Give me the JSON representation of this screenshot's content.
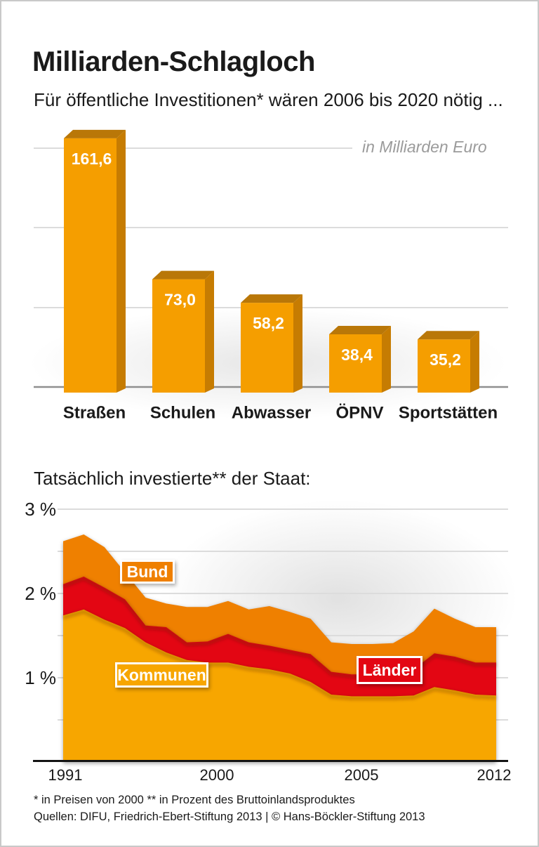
{
  "page": {
    "title": "Milliarden-Schlagloch",
    "subtitle": "Für öffentliche Investitionen* wären 2006 bis 2020 nötig ...",
    "section2_heading": "Tatsächlich investierte** der Staat:",
    "footnote": "* in Preisen von 2000  ** in Prozent des Bruttoinlandsproduktes",
    "source_line": "Quellen: DIFU, Friedrich-Ebert-Stiftung 2013 | © Hans-Böckler-Stiftung 2013"
  },
  "colors": {
    "bar_face": "#F59E00",
    "bar_shade_top": "#B97708",
    "bar_shade_side": "#C67C02",
    "orange_light": "#F7A600",
    "orange_dark": "#EF8000",
    "red": "#E30613",
    "grid": "#DCDCDC",
    "bar_baseline": "#8F8F8F",
    "axis": "#141414",
    "text": "#1A1A1A",
    "muted_gray": "#9B9B9B"
  },
  "chart_data": [
    {
      "type": "bar",
      "title": "Für öffentliche Investitionen* wären 2006 bis 2020 nötig ...",
      "unit_label": "in Milliarden Euro",
      "categories": [
        "Straßen",
        "Schulen",
        "Abwasser",
        "ÖPNV",
        "Sportstätten"
      ],
      "values": [
        161.6,
        73.0,
        58.2,
        38.4,
        35.2
      ],
      "value_labels": [
        "161,6",
        "73,0",
        "58,2",
        "38,4",
        "35,2"
      ],
      "ylim": [
        0,
        176
      ],
      "grid_step": 50,
      "grid_visible": true,
      "style": "3d-extruded-bars"
    },
    {
      "type": "area",
      "stacked": true,
      "title": "Tatsächlich investierte** der Staat:",
      "unit": "Prozent des Bruttoinlandsproduktes",
      "x": [
        1991,
        1992,
        1993,
        1994,
        1995,
        1996,
        1997,
        1998,
        1999,
        2000,
        2001,
        2002,
        2003,
        2004,
        2005,
        2006,
        2007,
        2008,
        2009,
        2010,
        2011,
        2012
      ],
      "xticks": [
        "1991",
        "2000",
        "2005",
        "2012"
      ],
      "yticks": [
        "3 %",
        "2 %",
        "1 %"
      ],
      "ylim": [
        0,
        3.27
      ],
      "grid_interval": 0.5,
      "series": [
        {
          "name": "Kommunen",
          "color": "#F7A600",
          "values": [
            1.74,
            1.81,
            1.69,
            1.59,
            1.42,
            1.3,
            1.21,
            1.18,
            1.18,
            1.13,
            1.1,
            1.05,
            0.95,
            0.8,
            0.78,
            0.78,
            0.78,
            0.79,
            0.89,
            0.85,
            0.8,
            0.79
          ]
        },
        {
          "name": "Länder",
          "color": "#E30613",
          "values": [
            0.37,
            0.39,
            0.38,
            0.34,
            0.2,
            0.3,
            0.21,
            0.25,
            0.34,
            0.29,
            0.28,
            0.28,
            0.33,
            0.27,
            0.26,
            0.26,
            0.26,
            0.31,
            0.4,
            0.4,
            0.38,
            0.39
          ]
        },
        {
          "name": "Bund",
          "color": "#EF8000",
          "values": [
            0.51,
            0.5,
            0.48,
            0.32,
            0.33,
            0.28,
            0.42,
            0.41,
            0.39,
            0.39,
            0.47,
            0.45,
            0.42,
            0.35,
            0.36,
            0.36,
            0.37,
            0.45,
            0.53,
            0.45,
            0.42,
            0.42
          ]
        }
      ]
    }
  ]
}
